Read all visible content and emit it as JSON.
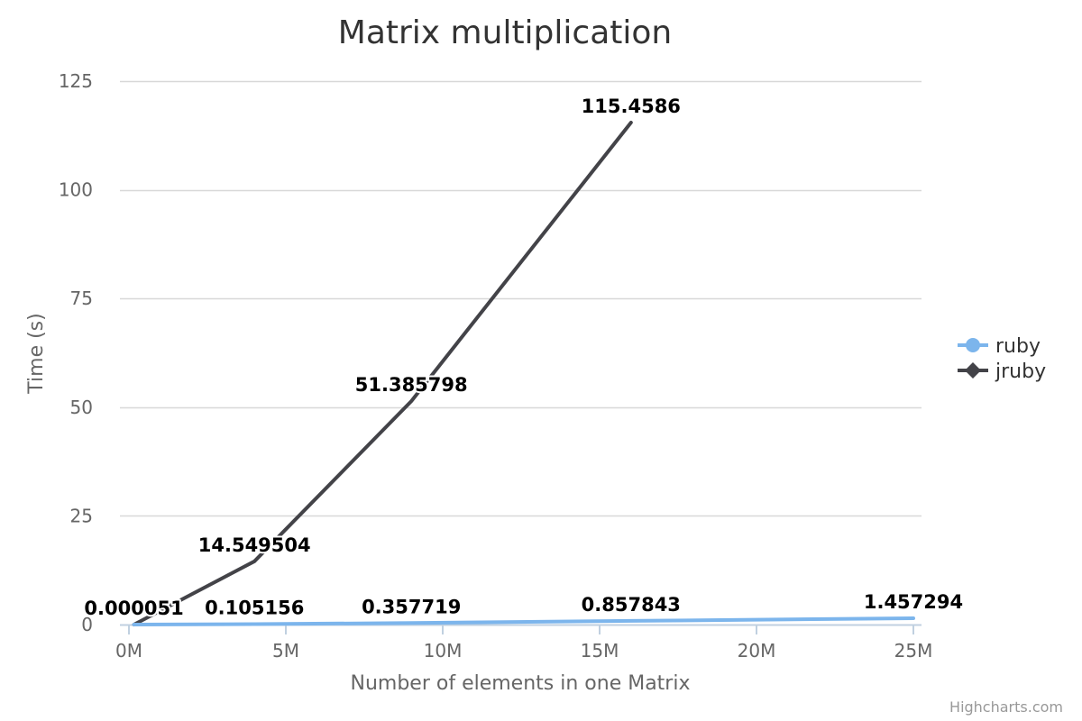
{
  "chart_data": {
    "type": "line",
    "title": "Matrix multiplication",
    "xlabel": "Number of elements in one Matrix",
    "ylabel": "Time (s)",
    "x_unit_suffix": "M",
    "xlim": [
      0,
      25
    ],
    "ylim": [
      0,
      125
    ],
    "x_ticks": [
      0,
      5,
      10,
      15,
      20,
      25
    ],
    "x_tick_labels": [
      "0M",
      "5M",
      "10M",
      "15M",
      "20M",
      "25M"
    ],
    "y_ticks": [
      0,
      25,
      50,
      75,
      100,
      125
    ],
    "y_tick_labels": [
      "0",
      "25",
      "50",
      "75",
      "100",
      "125"
    ],
    "grid": true,
    "legend_position": "right",
    "series": [
      {
        "name": "ruby",
        "color": "#7cb5ec",
        "marker": "circle",
        "x": [
          0.16,
          4,
          9,
          16,
          25
        ],
        "y": [
          5.1e-05,
          0.105156,
          0.357719,
          0.857843,
          1.457294
        ],
        "labels": [
          "0.000051",
          "0.105156",
          "0.357719",
          "0.857843",
          "1.457294"
        ]
      },
      {
        "name": "jruby",
        "color": "#434348",
        "marker": "diamond",
        "x": [
          0.16,
          4,
          9,
          16
        ],
        "y": [
          0.0,
          14.549504,
          51.385798,
          115.4586
        ],
        "labels": [
          "",
          "14.549504",
          "51.385798",
          "115.4586"
        ]
      }
    ]
  },
  "credits": "Highcharts.com"
}
